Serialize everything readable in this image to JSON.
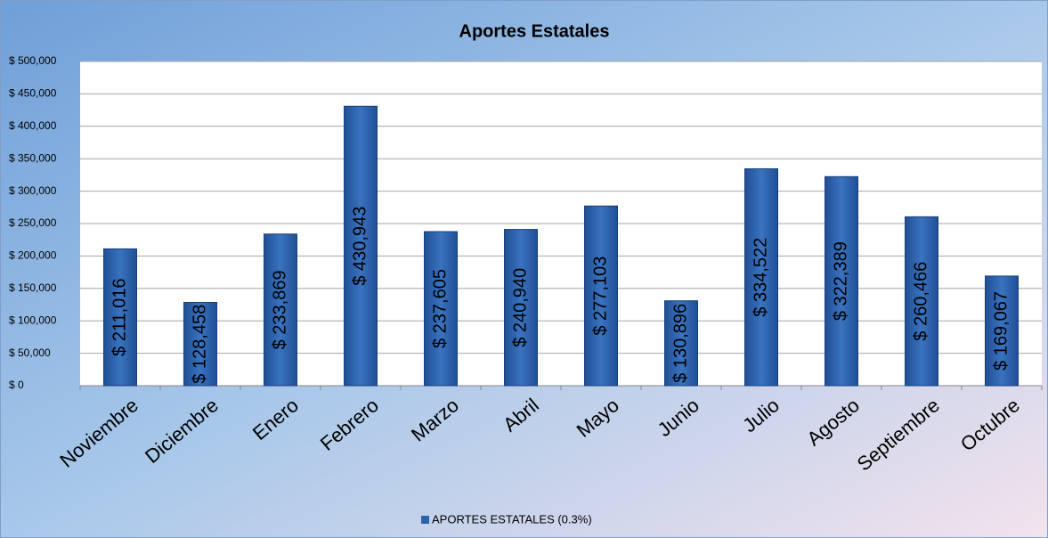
{
  "chart_data": {
    "type": "bar",
    "title": "Aportes  Estatales",
    "categories": [
      "Noviembre",
      "Diciembre",
      "Enero",
      "Febrero",
      "Marzo",
      "Abril",
      "Mayo",
      "Junio",
      "Julio",
      "Agosto",
      "Septiembre",
      "Octubre"
    ],
    "series": [
      {
        "name": "APORTES ESTATALES (0.3%)",
        "color": "#2f63ad",
        "values": [
          211016,
          128458,
          233869,
          430943,
          237605,
          240940,
          277103,
          130896,
          334522,
          322389,
          260466,
          169067
        ],
        "value_labels": [
          "$ 211,016",
          "$ 128,458",
          "$ 233,869",
          "$ 430,943",
          "$ 237,605",
          "$ 240,940",
          "$ 277,103",
          "$ 130,896",
          "$ 334,522",
          "$ 322,389",
          "$ 260,466",
          "$ 169,067"
        ]
      }
    ],
    "ylim": [
      0,
      500000
    ],
    "yticks": [
      {
        "value": 0,
        "label": "$ 0"
      },
      {
        "value": 50000,
        "label": "$ 50,000"
      },
      {
        "value": 100000,
        "label": "$ 100,000"
      },
      {
        "value": 150000,
        "label": "$ 150,000"
      },
      {
        "value": 200000,
        "label": "$ 200,000"
      },
      {
        "value": 250000,
        "label": "$ 250,000"
      },
      {
        "value": 300000,
        "label": "$ 300,000"
      },
      {
        "value": 350000,
        "label": "$ 350,000"
      },
      {
        "value": 400000,
        "label": "$ 400,000"
      },
      {
        "value": 450000,
        "label": "$ 450,000"
      },
      {
        "value": 500000,
        "label": "$ 500,000"
      }
    ],
    "grid": true,
    "legend": "bottom"
  }
}
